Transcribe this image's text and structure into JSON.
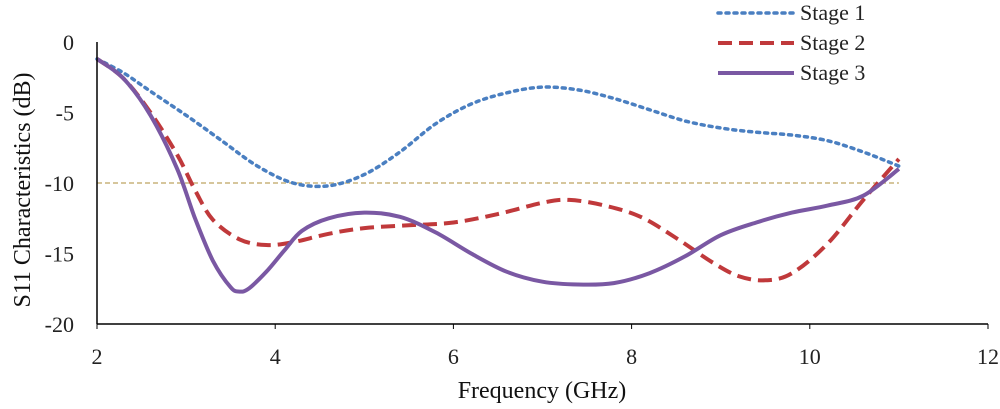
{
  "chart_data": {
    "type": "line",
    "title": "",
    "xlabel": "Frequency (GHz)",
    "ylabel": "S11 Characteristics (dB)",
    "xlim": [
      2,
      12
    ],
    "ylim": [
      -20,
      0
    ],
    "x_ticks": [
      2,
      4,
      6,
      8,
      10,
      12
    ],
    "y_ticks": [
      0,
      -5,
      -10,
      -15,
      -20
    ],
    "x_tick_labels": [
      "2",
      "4",
      "6",
      "8",
      "10",
      "12"
    ],
    "y_tick_labels": [
      "0",
      "-5",
      "-10",
      "-15",
      "-20"
    ],
    "grid": false,
    "legend_position": "top-right",
    "reference_line": {
      "y": -10,
      "x_range": [
        2,
        11
      ],
      "color": "#c8b47c",
      "style": "dashed"
    },
    "series": [
      {
        "name": "Stage 1",
        "color": "#4a7fc1",
        "style": "dotted",
        "x": [
          2.0,
          2.3,
          2.6,
          3.0,
          3.4,
          3.8,
          4.2,
          4.6,
          5.0,
          5.4,
          5.8,
          6.2,
          6.6,
          7.0,
          7.4,
          7.8,
          8.2,
          8.6,
          9.0,
          9.4,
          9.8,
          10.2,
          10.6,
          11.0
        ],
        "values": [
          -1.2,
          -2.2,
          -3.5,
          -5.2,
          -7.0,
          -8.8,
          -10.0,
          -10.2,
          -9.4,
          -7.8,
          -5.8,
          -4.4,
          -3.6,
          -3.2,
          -3.4,
          -4.0,
          -4.8,
          -5.6,
          -6.1,
          -6.4,
          -6.6,
          -7.0,
          -7.8,
          -8.8
        ]
      },
      {
        "name": "Stage 2",
        "color": "#c0393b",
        "style": "dashed",
        "x": [
          2.0,
          2.3,
          2.6,
          2.9,
          3.1,
          3.3,
          3.6,
          3.9,
          4.2,
          4.6,
          5.0,
          5.5,
          6.0,
          6.5,
          7.0,
          7.3,
          7.7,
          8.1,
          8.5,
          8.9,
          9.2,
          9.5,
          9.8,
          10.2,
          10.6,
          11.0
        ],
        "values": [
          -1.2,
          -2.6,
          -5.0,
          -8.0,
          -10.5,
          -12.6,
          -14.0,
          -14.4,
          -14.2,
          -13.6,
          -13.2,
          -13.0,
          -12.8,
          -12.2,
          -11.4,
          -11.2,
          -11.6,
          -12.4,
          -13.9,
          -15.6,
          -16.6,
          -16.9,
          -16.4,
          -14.3,
          -11.2,
          -8.3
        ]
      },
      {
        "name": "Stage 3",
        "color": "#7a58a3",
        "style": "solid",
        "x": [
          2.0,
          2.3,
          2.6,
          2.9,
          3.1,
          3.3,
          3.5,
          3.6,
          3.7,
          3.9,
          4.1,
          4.3,
          4.6,
          5.0,
          5.4,
          5.8,
          6.2,
          6.6,
          7.0,
          7.4,
          7.8,
          8.2,
          8.6,
          9.0,
          9.4,
          9.8,
          10.2,
          10.6,
          11.0
        ],
        "values": [
          -1.2,
          -2.6,
          -5.2,
          -9.0,
          -12.5,
          -15.5,
          -17.4,
          -17.7,
          -17.5,
          -16.3,
          -14.8,
          -13.4,
          -12.5,
          -12.1,
          -12.4,
          -13.5,
          -15.0,
          -16.3,
          -17.0,
          -17.2,
          -17.1,
          -16.4,
          -15.2,
          -13.7,
          -12.8,
          -12.1,
          -11.6,
          -10.9,
          -9.0
        ]
      }
    ]
  }
}
